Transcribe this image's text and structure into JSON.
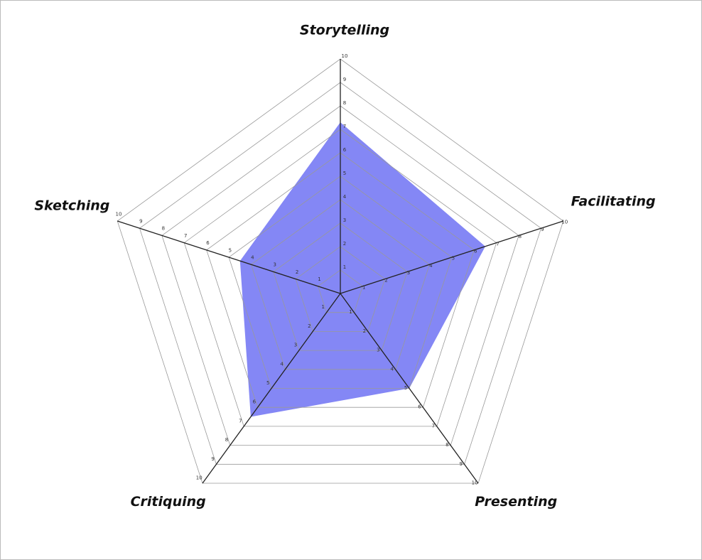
{
  "chart_data": {
    "type": "radar",
    "categories": [
      "Storytelling",
      "Facilitating",
      "Presenting",
      "Critiquing",
      "Sketching"
    ],
    "values": [
      7.3,
      6.5,
      5,
      6.5,
      4.5
    ],
    "color": "#6e72f3",
    "rlim": [
      0,
      10
    ],
    "rticks": [
      1,
      2,
      3,
      4,
      5,
      6,
      7,
      8,
      9,
      10
    ],
    "grid": true
  }
}
